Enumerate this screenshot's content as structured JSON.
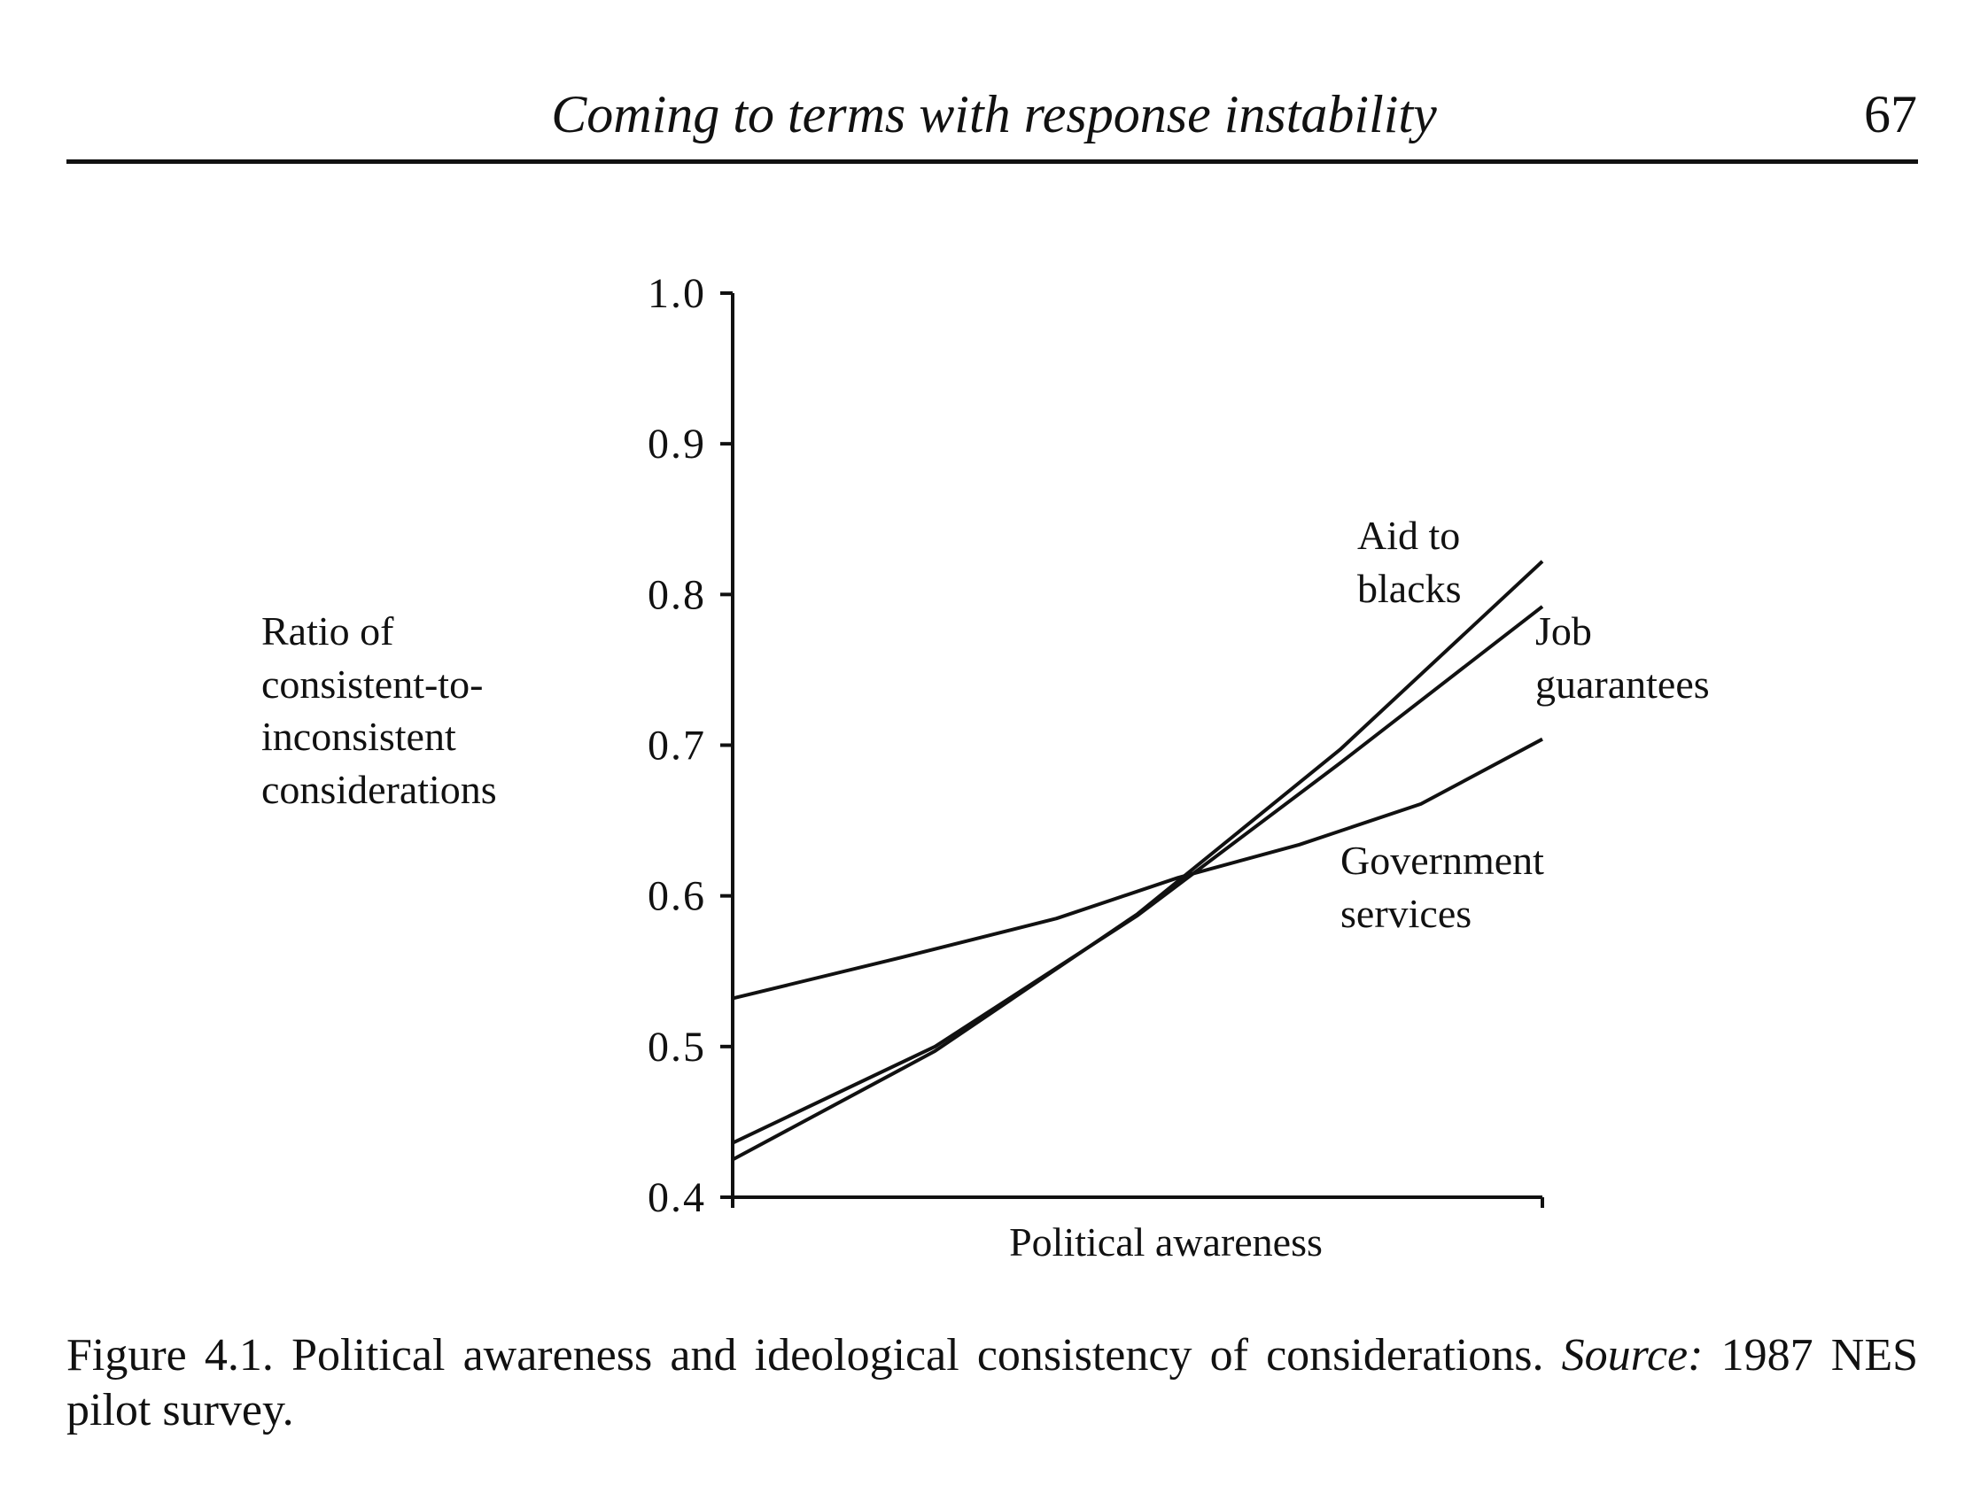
{
  "header": {
    "title": "Coming to terms with response instability",
    "page_number": "67"
  },
  "caption": {
    "text": "Figure 4.1. Political awareness and ideological consistency of considerations.",
    "source_label": "Source:",
    "source_text": "1987 NES pilot survey."
  },
  "chart_data": {
    "type": "line",
    "title": "",
    "xlabel": "Political awareness",
    "ylabel": [
      "Ratio of",
      "consistent-to-",
      "inconsistent",
      "considerations"
    ],
    "ylim": [
      0.4,
      1.0
    ],
    "xlim": [
      0,
      1
    ],
    "yticks": [
      "0.4",
      "0.5",
      "0.6",
      "0.7",
      "0.8",
      "0.9",
      "1.0"
    ],
    "grid": false,
    "series": [
      {
        "name": "Aid to blacks",
        "label_lines": [
          "Aid to",
          "blacks"
        ],
        "x": [
          0,
          0.25,
          0.5,
          0.75,
          1
        ],
        "y": [
          0.425,
          0.497,
          0.588,
          0.697,
          0.822
        ]
      },
      {
        "name": "Job guarantees",
        "label_lines": [
          "Job",
          "guarantees"
        ],
        "x": [
          0,
          0.25,
          0.5,
          0.75,
          1
        ],
        "y": [
          0.436,
          0.5,
          0.587,
          0.688,
          0.792
        ]
      },
      {
        "name": "Government services",
        "label_lines": [
          "Government",
          "services"
        ],
        "x": [
          0,
          0.2,
          0.4,
          0.55,
          0.7,
          0.85,
          1
        ],
        "y": [
          0.532,
          0.558,
          0.585,
          0.612,
          0.634,
          0.661,
          0.704
        ]
      }
    ]
  }
}
